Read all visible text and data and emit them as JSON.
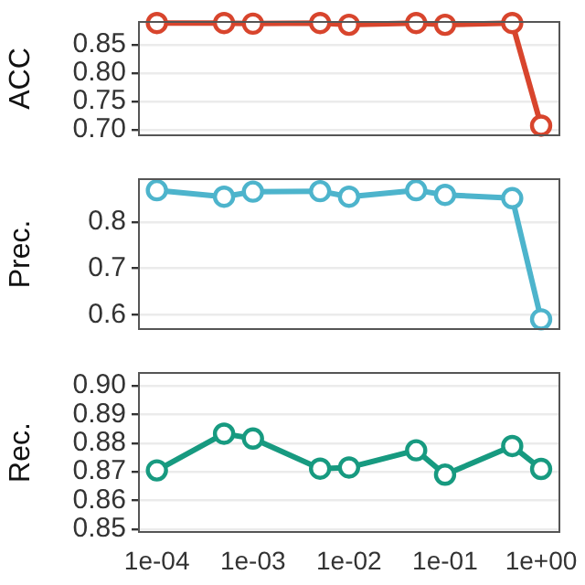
{
  "chart_data": [
    {
      "type": "line",
      "ylabel": "ACC",
      "x": [
        0.0001,
        0.0005,
        0.001,
        0.005,
        0.01,
        0.05,
        0.1,
        0.5,
        1
      ],
      "series": [
        {
          "color": "#d8452d",
          "values": [
            0.888,
            0.888,
            0.887,
            0.888,
            0.885,
            0.888,
            0.885,
            0.888,
            0.707
          ]
        }
      ],
      "xlim": [
        6.5e-05,
        1.55
      ],
      "xticks": [
        {
          "value": 0.0001,
          "label": null
        },
        {
          "value": 0.001,
          "label": null
        },
        {
          "value": 0.01,
          "label": null
        },
        {
          "value": 0.1,
          "label": null
        },
        {
          "value": 1,
          "label": null
        }
      ],
      "ylim": [
        0.69,
        0.89
      ],
      "yticks": [
        {
          "value": 0.7,
          "label": "0.70"
        },
        {
          "value": 0.75,
          "label": "0.75"
        },
        {
          "value": 0.8,
          "label": "0.80"
        },
        {
          "value": 0.85,
          "label": "0.85"
        }
      ],
      "log": "x",
      "grid": "y",
      "marker": "circle",
      "tick_labels": "y",
      "legend": false
    },
    {
      "type": "line",
      "ylabel": "Prec.",
      "x": [
        0.0001,
        0.0005,
        0.001,
        0.005,
        0.01,
        0.05,
        0.1,
        0.5,
        1
      ],
      "series": [
        {
          "color": "#4db4cc",
          "values": [
            0.869,
            0.855,
            0.866,
            0.867,
            0.855,
            0.869,
            0.859,
            0.852,
            0.59
          ]
        }
      ],
      "xlim": [
        6.5e-05,
        1.55
      ],
      "xticks": [
        {
          "value": 0.0001,
          "label": null
        },
        {
          "value": 0.001,
          "label": null
        },
        {
          "value": 0.01,
          "label": null
        },
        {
          "value": 0.1,
          "label": null
        },
        {
          "value": 1,
          "label": null
        }
      ],
      "ylim": [
        0.569,
        0.893
      ],
      "yticks": [
        0.6,
        0.7,
        0.8
      ],
      "log": "x",
      "grid": "y",
      "marker": "circle",
      "tick_labels": "y",
      "legend": false
    },
    {
      "type": "line",
      "ylabel": "Rec.",
      "x": [
        0.0001,
        0.0005,
        0.001,
        0.005,
        0.01,
        0.05,
        0.1,
        0.5,
        1
      ],
      "series": [
        {
          "color": "#179a80",
          "values": [
            0.8705,
            0.8833,
            0.8816,
            0.8711,
            0.8715,
            0.8775,
            0.869,
            0.879,
            0.871
          ]
        }
      ],
      "xlim": [
        6.5e-05,
        1.55
      ],
      "xticks": [
        {
          "value": 0.0001,
          "label": "1e-04"
        },
        {
          "value": 0.001,
          "label": "1e-03"
        },
        {
          "value": 0.01,
          "label": "1e-02"
        },
        {
          "value": 0.1,
          "label": "1e-01"
        },
        {
          "value": 1,
          "label": "1e+00"
        }
      ],
      "ylim": [
        0.849,
        0.9045
      ],
      "yticks": [
        {
          "value": 0.85,
          "label": "0.85"
        },
        {
          "value": 0.86,
          "label": "0.86"
        },
        {
          "value": 0.87,
          "label": "0.87"
        },
        {
          "value": 0.88,
          "label": "0.88"
        },
        {
          "value": 0.89,
          "label": "0.89"
        },
        {
          "value": 0.9,
          "label": "0.90"
        }
      ],
      "log": "x",
      "grid": "y",
      "marker": "circle",
      "legend": false
    }
  ]
}
